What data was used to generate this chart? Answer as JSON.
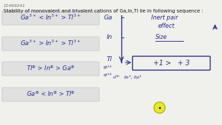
{
  "bg_color": "#f0f0ec",
  "id_text": "11469241",
  "title": "Stability of monovalent and trivalent cations of Ga,In,Tl lie in following sequence :",
  "line1": "Ga$^{3+}$ < In$^{3+}$ > Tl$^{3+}$",
  "line2": "Ga$^{3+}$ > In$^{3+}$ > Tl$^{3+}$",
  "line3": "Tl$^{\\oplus}$ > In$^{\\oplus}$ > Ga$^{\\oplus}$",
  "line4": "Ga$^{\\oplus}$ < In$^{\\oplus}$ > Tl$^{\\oplus}$",
  "label_Ga": "Ga",
  "label_In": "In",
  "label_Tl": "Tl",
  "inert_pair_line1": "Inert pair",
  "inert_pair_line2": "effect",
  "size_label": "Size",
  "box_label": "+1 >   + 3",
  "elec_config1": "4f$^{14}$",
  "elec_config2": "d$^{10}$",
  "elec_config3": "6s$^{2}$, 6p$^{1}$",
  "text_color": "#2b2b8a",
  "text_color_dark": "#333366",
  "font_italic": "italic"
}
